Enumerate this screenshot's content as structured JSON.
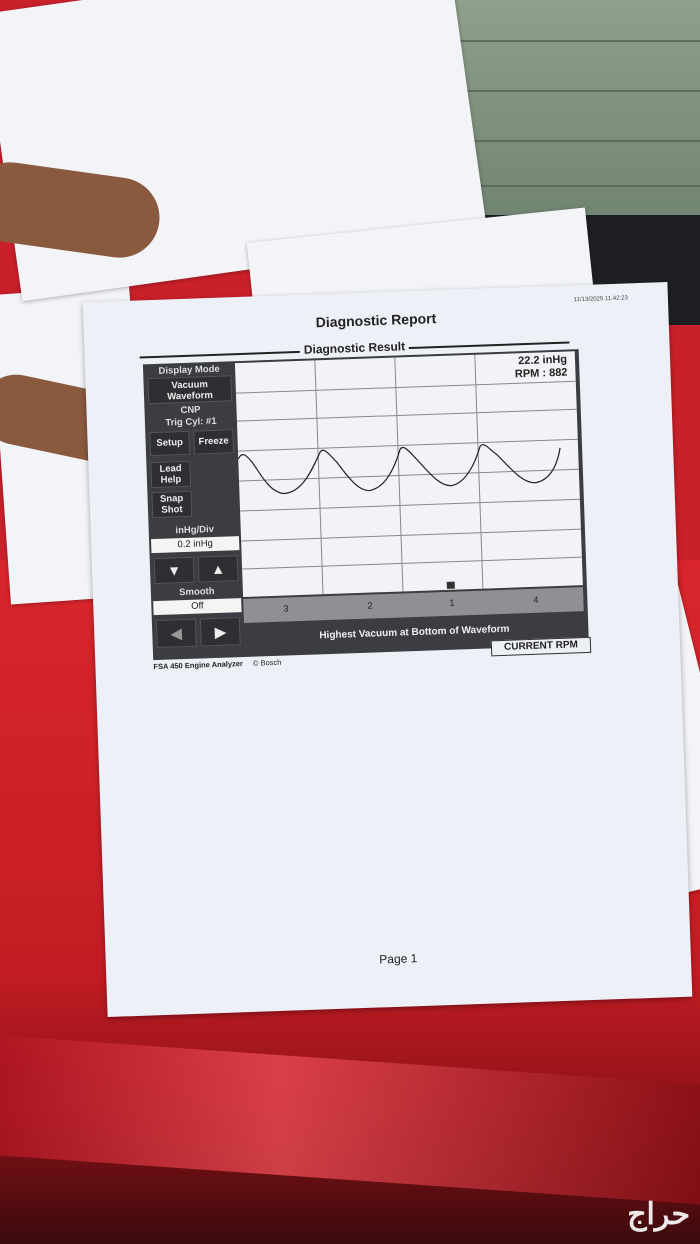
{
  "report": {
    "title": "Diagnostic Report",
    "timestamp": "11/13/2025 11:42:23",
    "section": "Diagnostic Result",
    "panel": {
      "display_mode_label": "Display Mode",
      "mode_value_1": "Vacuum",
      "mode_value_2": "Waveform",
      "cnp": "CNP",
      "trig": "Trig Cyl: #1",
      "setup": "Setup",
      "freeze": "Freeze",
      "lead_help_1": "Lead",
      "lead_help_2": "Help",
      "snap_1": "Snap",
      "snap_2": "Shot",
      "scale_label": "inHg/Div",
      "scale_value": "0.2 inHg",
      "down": "▼",
      "up": "▲",
      "smooth_label": "Smooth",
      "smooth_value": "Off",
      "left": "◀",
      "right": "▶"
    },
    "readout": {
      "vacuum": "22.2 inHg",
      "rpm": "RPM : 882"
    },
    "cylinders": [
      "3",
      "2",
      "1",
      "4"
    ],
    "message": "Highest Vacuum at Bottom of Waveform",
    "rpm_box": "CURRENT  RPM",
    "analyzer": "FSA 450 Engine Analyzer",
    "brand": "© Bosch",
    "page": "Page 1"
  },
  "watermark": "حراج",
  "colors": {
    "screen": "#3b3d42",
    "paper": "#eef0f8",
    "car": "#c41c24"
  }
}
